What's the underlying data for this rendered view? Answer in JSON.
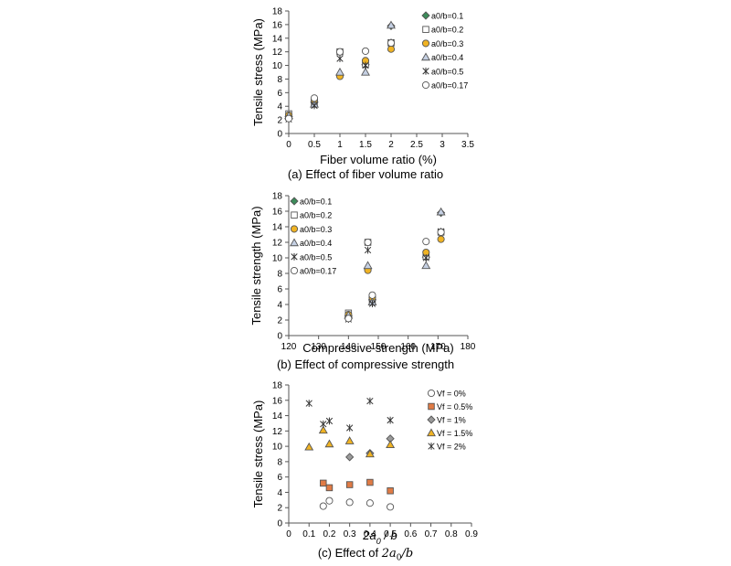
{
  "charts": [
    {
      "type": "scatter",
      "caption": "(a)  Effect of fiber volume ratio",
      "xlabel": "Fiber volume ratio (%)",
      "ylabel": "Tensile stress (MPa)",
      "xlim": [
        0,
        3.5
      ],
      "ylim": [
        0,
        18
      ],
      "xticks": [
        0,
        0.5,
        1,
        1.5,
        2,
        2.5,
        3,
        3.5
      ],
      "yticks": [
        0,
        2,
        4,
        6,
        8,
        10,
        12,
        14,
        16,
        18
      ],
      "xtick_labels": [
        "0",
        "0.5",
        "1",
        "1.5",
        "2",
        "2.5",
        "3",
        "3.5"
      ],
      "ytick_labels": [
        "0",
        "2",
        "4",
        "6",
        "8",
        "10",
        "12",
        "14",
        "16",
        "18"
      ],
      "grid": false,
      "legend_position": "top-right",
      "series": [
        {
          "name": "a0/b=0.1",
          "marker": "diamond",
          "fill": "#3b8c5a",
          "points": [
            [
              0,
              2.5
            ],
            [
              0.5,
              4.6
            ],
            [
              1,
              8.6
            ],
            [
              1.5,
              10.1
            ],
            [
              2,
              15.8
            ]
          ]
        },
        {
          "name": "a0/b=0.2",
          "marker": "square",
          "fill": "#ffffff",
          "points": [
            [
              0,
              2.9
            ],
            [
              0.5,
              4.5
            ],
            [
              1,
              12.0
            ],
            [
              1.5,
              10.2
            ],
            [
              2,
              13.3
            ]
          ]
        },
        {
          "name": "a0/b=0.3",
          "marker": "circle",
          "fill": "#f0b323",
          "points": [
            [
              0,
              2.7
            ],
            [
              0.5,
              4.9
            ],
            [
              1,
              8.4
            ],
            [
              1.5,
              10.7
            ],
            [
              2,
              12.4
            ]
          ]
        },
        {
          "name": "a0/b=0.4",
          "marker": "triangle",
          "fill": "#c5d0e3",
          "points": [
            [
              0,
              2.6
            ],
            [
              0.5,
              4.3
            ],
            [
              1,
              9.0
            ],
            [
              1.5,
              9.0
            ],
            [
              2,
              15.9
            ]
          ]
        },
        {
          "name": "a0/b=0.5",
          "marker": "star",
          "fill": "none",
          "points": [
            [
              0,
              2.1
            ],
            [
              0.5,
              4.1
            ],
            [
              1,
              11.0
            ],
            [
              1.5,
              10.0
            ],
            [
              2,
              13.4
            ]
          ]
        },
        {
          "name": "a0/b=0.17",
          "marker": "circle",
          "fill": "#ffffff",
          "points": [
            [
              0,
              2.2
            ],
            [
              0.5,
              5.2
            ],
            [
              1,
              12.0
            ],
            [
              1.5,
              12.1
            ],
            [
              2,
              13.3
            ]
          ]
        }
      ]
    },
    {
      "type": "scatter",
      "caption": "(b)  Effect of compressive strength",
      "xlabel": "Compressive strength (MPa)",
      "ylabel": "Tensile strength (MPa)",
      "xlim": [
        120,
        180
      ],
      "ylim": [
        0,
        18
      ],
      "xticks": [
        120,
        130,
        140,
        150,
        160,
        170,
        180
      ],
      "yticks": [
        0,
        2,
        4,
        6,
        8,
        10,
        12,
        14,
        16,
        18
      ],
      "xtick_labels": [
        "120",
        "130",
        "140",
        "150",
        "160",
        "170",
        "180"
      ],
      "ytick_labels": [
        "0",
        "2",
        "4",
        "6",
        "8",
        "10",
        "12",
        "14",
        "16",
        "18"
      ],
      "grid": false,
      "legend_position": "top-left",
      "series": [
        {
          "name": "a0/b=0.1",
          "marker": "diamond",
          "fill": "#3b8c5a",
          "points": [
            [
              140,
              2.5
            ],
            [
              148,
              4.6
            ],
            [
              146.5,
              8.6
            ],
            [
              166,
              10.1
            ],
            [
              171,
              15.8
            ]
          ]
        },
        {
          "name": "a0/b=0.2",
          "marker": "square",
          "fill": "#ffffff",
          "points": [
            [
              140,
              2.9
            ],
            [
              148,
              4.5
            ],
            [
              146.5,
              12.0
            ],
            [
              166,
              10.2
            ],
            [
              171,
              13.3
            ]
          ]
        },
        {
          "name": "a0/b=0.3",
          "marker": "circle",
          "fill": "#f0b323",
          "points": [
            [
              140,
              2.7
            ],
            [
              148,
              4.9
            ],
            [
              146.5,
              8.4
            ],
            [
              166,
              10.7
            ],
            [
              171,
              12.4
            ]
          ]
        },
        {
          "name": "a0/b=0.4",
          "marker": "triangle",
          "fill": "#c5d0e3",
          "points": [
            [
              140,
              2.6
            ],
            [
              148,
              4.3
            ],
            [
              146.5,
              9.0
            ],
            [
              166,
              9.0
            ],
            [
              171,
              15.9
            ]
          ]
        },
        {
          "name": "a0/b=0.5",
          "marker": "star",
          "fill": "none",
          "points": [
            [
              140,
              2.1
            ],
            [
              148,
              4.1
            ],
            [
              146.5,
              11.0
            ],
            [
              166,
              10.0
            ],
            [
              171,
              13.4
            ]
          ]
        },
        {
          "name": "a0/b=0.17",
          "marker": "circle",
          "fill": "#ffffff",
          "points": [
            [
              140,
              2.2
            ],
            [
              148,
              5.2
            ],
            [
              146.5,
              12.0
            ],
            [
              166,
              12.1
            ],
            [
              171,
              13.3
            ]
          ]
        }
      ]
    },
    {
      "type": "scatter",
      "caption_prefix": "(c)  Effect of",
      "caption_math": "2a",
      "caption_math_sub": "0",
      "caption_math_tail": "/b",
      "xlabel_main": "2a",
      "xlabel_sub": "0",
      "xlabel_tail": " / b",
      "ylabel": "Tensile stress (MPa)",
      "xlim": [
        0,
        0.9
      ],
      "ylim": [
        0,
        18
      ],
      "xticks": [
        0,
        0.1,
        0.2,
        0.3,
        0.4,
        0.5,
        0.6,
        0.7,
        0.8,
        0.9
      ],
      "yticks": [
        0,
        2,
        4,
        6,
        8,
        10,
        12,
        14,
        16,
        18
      ],
      "xtick_labels": [
        "0",
        "0.1",
        "0.2",
        "0.3",
        "0.4",
        "0.5",
        "0.6",
        "0.7",
        "0.8",
        "0.9"
      ],
      "ytick_labels": [
        "0",
        "2",
        "4",
        "6",
        "8",
        "10",
        "12",
        "14",
        "16",
        "18"
      ],
      "grid": false,
      "legend_position": "top-right",
      "series": [
        {
          "name": "Vf = 0%",
          "marker": "circle",
          "fill": "#ffffff",
          "points": [
            [
              0.17,
              2.2
            ],
            [
              0.2,
              2.9
            ],
            [
              0.3,
              2.7
            ],
            [
              0.4,
              2.6
            ],
            [
              0.5,
              2.1
            ]
          ]
        },
        {
          "name": "Vf = 0.5%",
          "marker": "square",
          "fill": "#e07b45",
          "points": [
            [
              0.17,
              5.2
            ],
            [
              0.2,
              4.6
            ],
            [
              0.3,
              5.0
            ],
            [
              0.4,
              5.3
            ],
            [
              0.5,
              4.2
            ]
          ]
        },
        {
          "name": "Vf = 1%",
          "marker": "diamond",
          "fill": "#9a9a9a",
          "points": [
            [
              0.3,
              8.6
            ],
            [
              0.4,
              9.1
            ],
            [
              0.5,
              11.0
            ]
          ]
        },
        {
          "name": "Vf = 1.5%",
          "marker": "triangle",
          "fill": "#f0b323",
          "points": [
            [
              0.1,
              9.9
            ],
            [
              0.17,
              12.1
            ],
            [
              0.2,
              10.3
            ],
            [
              0.3,
              10.7
            ],
            [
              0.4,
              9.0
            ],
            [
              0.5,
              10.2
            ]
          ]
        },
        {
          "name": "Vf = 2%",
          "marker": "star",
          "fill": "none",
          "points": [
            [
              0.1,
              15.6
            ],
            [
              0.17,
              12.9
            ],
            [
              0.2,
              13.3
            ],
            [
              0.3,
              12.4
            ],
            [
              0.4,
              15.9
            ],
            [
              0.5,
              13.4
            ]
          ]
        }
      ]
    }
  ],
  "colors": {
    "axis": "#555555",
    "marker_stroke": "#555555",
    "star_stroke": "#333333"
  }
}
